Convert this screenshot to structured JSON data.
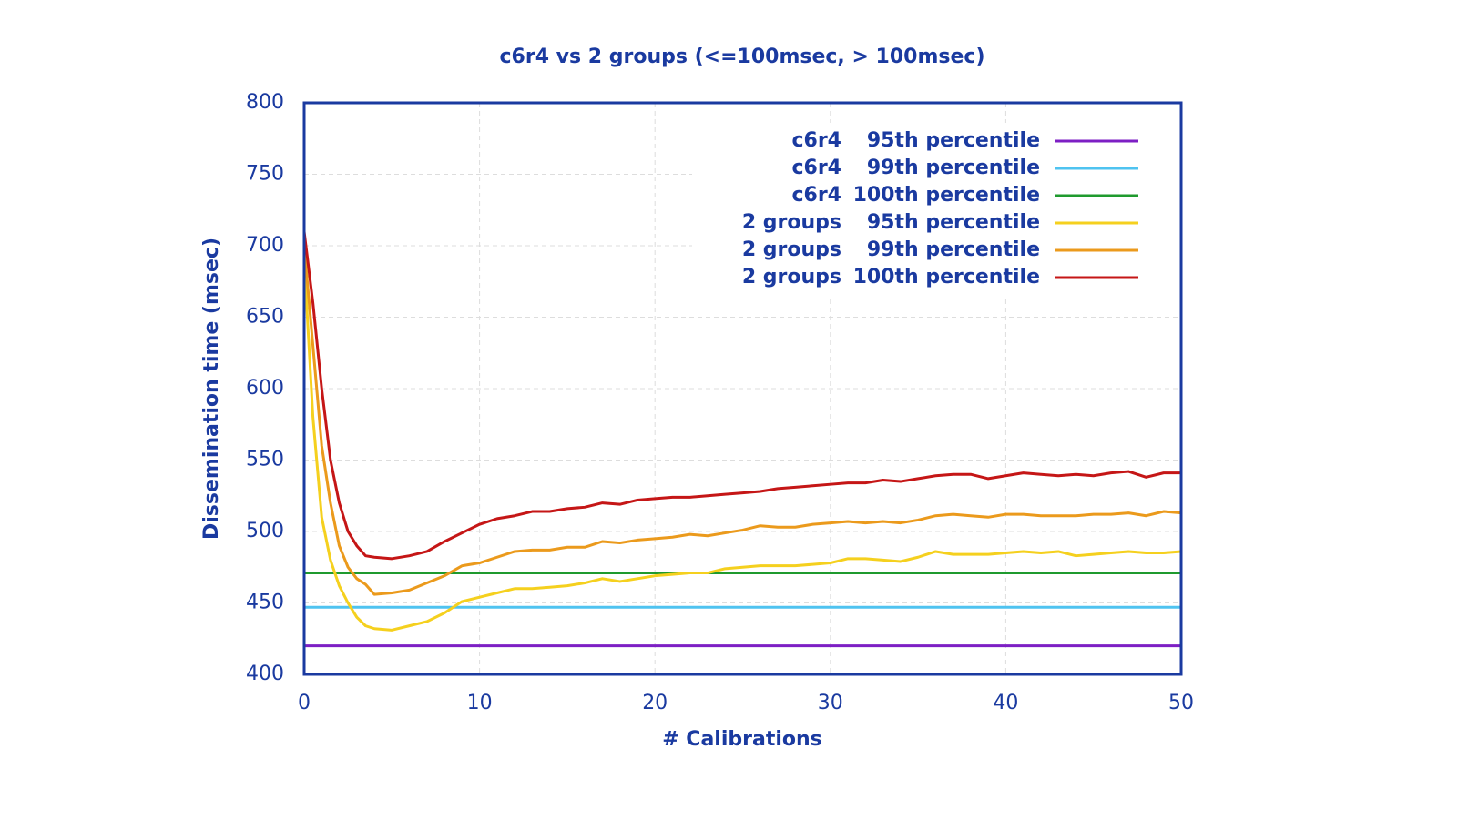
{
  "chart_data": {
    "type": "line",
    "title": "c6r4 vs 2 groups (<=100msec, > 100msec)",
    "x_label": "# Calibrations",
    "y_label": "Dissemination time (msec)",
    "xlim": [
      0,
      50
    ],
    "xticks": [
      0,
      10,
      20,
      30,
      40,
      50
    ],
    "ylim": [
      400,
      800
    ],
    "yticks": [
      400,
      450,
      500,
      550,
      600,
      650,
      700,
      750,
      800
    ],
    "grid": true,
    "legend": "upper right",
    "series": [
      {
        "group": "c6r4",
        "name": "95th percentile",
        "color": "#7d1fc4",
        "x": [
          0,
          50
        ],
        "values": [
          420,
          420
        ]
      },
      {
        "group": "c6r4",
        "name": "99th percentile",
        "color": "#4fc3f0",
        "x": [
          0,
          50
        ],
        "values": [
          447,
          447
        ]
      },
      {
        "group": "c6r4",
        "name": "100th percentile",
        "color": "#1f9a2e",
        "x": [
          0,
          50
        ],
        "values": [
          471,
          471
        ]
      },
      {
        "group": "2 groups",
        "name": "95th percentile",
        "color": "#f5d01e",
        "x": [
          0,
          0.5,
          1,
          1.5,
          2,
          2.5,
          3,
          3.5,
          4,
          5,
          6,
          7,
          8,
          9,
          10,
          11,
          12,
          13,
          14,
          15,
          16,
          17,
          18,
          19,
          20,
          21,
          22,
          23,
          24,
          25,
          26,
          27,
          28,
          29,
          30,
          31,
          32,
          33,
          34,
          35,
          36,
          37,
          38,
          39,
          40,
          41,
          42,
          43,
          44,
          45,
          46,
          47,
          48,
          49,
          50
        ],
        "values": [
          690,
          580,
          510,
          480,
          462,
          450,
          440,
          434,
          432,
          431,
          434,
          437,
          443,
          451,
          454,
          457,
          460,
          460,
          461,
          462,
          464,
          467,
          465,
          467,
          469,
          470,
          471,
          471,
          474,
          475,
          476,
          476,
          476,
          477,
          478,
          481,
          481,
          480,
          479,
          482,
          486,
          484,
          484,
          484,
          485,
          486,
          485,
          486,
          483,
          484,
          485,
          486,
          485,
          485,
          486
        ]
      },
      {
        "group": "2 groups",
        "name": "99th percentile",
        "color": "#eb9a1c",
        "x": [
          0,
          0.5,
          1,
          1.5,
          2,
          2.5,
          3,
          3.5,
          4,
          5,
          6,
          7,
          8,
          9,
          10,
          11,
          12,
          13,
          14,
          15,
          16,
          17,
          18,
          19,
          20,
          21,
          22,
          23,
          24,
          25,
          26,
          27,
          28,
          29,
          30,
          31,
          32,
          33,
          34,
          35,
          36,
          37,
          38,
          39,
          40,
          41,
          42,
          43,
          44,
          45,
          46,
          47,
          48,
          49,
          50
        ],
        "values": [
          700,
          630,
          560,
          520,
          490,
          475,
          467,
          463,
          456,
          457,
          459,
          464,
          469,
          476,
          478,
          482,
          486,
          487,
          487,
          489,
          489,
          493,
          492,
          494,
          495,
          496,
          498,
          497,
          499,
          501,
          504,
          503,
          503,
          505,
          506,
          507,
          506,
          507,
          506,
          508,
          511,
          512,
          511,
          510,
          512,
          512,
          511,
          511,
          511,
          512,
          512,
          513,
          511,
          514,
          513
        ]
      },
      {
        "group": "2 groups",
        "name": "100th percentile",
        "color": "#c51616",
        "x": [
          0,
          0.5,
          1,
          1.5,
          2,
          2.5,
          3,
          3.5,
          4,
          5,
          6,
          7,
          8,
          9,
          10,
          11,
          12,
          13,
          14,
          15,
          16,
          17,
          18,
          19,
          20,
          21,
          22,
          23,
          24,
          25,
          26,
          27,
          28,
          29,
          30,
          31,
          32,
          33,
          34,
          35,
          36,
          37,
          38,
          39,
          40,
          41,
          42,
          43,
          44,
          45,
          46,
          47,
          48,
          49,
          50
        ],
        "values": [
          710,
          660,
          600,
          550,
          520,
          500,
          490,
          483,
          482,
          481,
          483,
          486,
          493,
          499,
          505,
          509,
          511,
          514,
          514,
          516,
          517,
          520,
          519,
          522,
          523,
          524,
          524,
          525,
          526,
          527,
          528,
          530,
          531,
          532,
          533,
          534,
          534,
          536,
          535,
          537,
          539,
          540,
          540,
          537,
          539,
          541,
          540,
          539,
          540,
          539,
          541,
          542,
          538,
          541,
          541
        ]
      }
    ]
  }
}
